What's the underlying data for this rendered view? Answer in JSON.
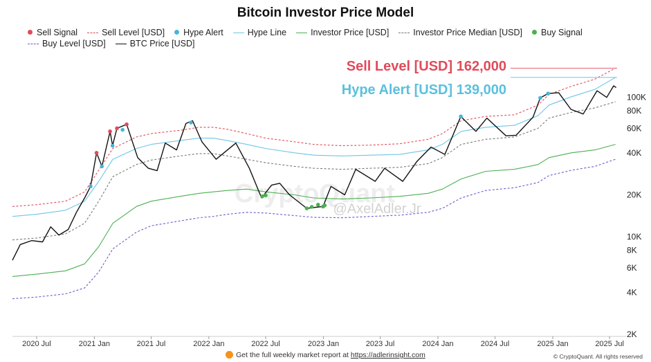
{
  "page": {
    "title": "Bitcoin Investor Price Model",
    "footer_text": "Get the full weekly market report at",
    "footer_link": "https://adlerinsight.com",
    "copyright": "© CryptoQuant. All rights reserved",
    "watermark": "CryptoQuant",
    "author_tag": "@AxelAdler.Jr"
  },
  "legend": [
    {
      "label": "Sell Signal",
      "kind": "dot",
      "color": "#e04b5a"
    },
    {
      "label": "Sell Level [USD]",
      "kind": "dash",
      "color": "#e04b5a"
    },
    {
      "label": "Hype Alert",
      "kind": "dot",
      "color": "#47b5d8"
    },
    {
      "label": "Hype Line",
      "kind": "line",
      "color": "#6ec6e4"
    },
    {
      "label": "Investor Price [USD]",
      "kind": "line",
      "color": "#4caf50"
    },
    {
      "label": "Investor Price Median [USD]",
      "kind": "dash",
      "color": "#777777"
    },
    {
      "label": "Buy Signal",
      "kind": "dot",
      "color": "#4caf50"
    },
    {
      "label": "Buy Level [USD]",
      "kind": "dash",
      "color": "#6a5acd"
    },
    {
      "label": "BTC Price [USD]",
      "kind": "line",
      "color": "#111111"
    }
  ],
  "annotations": [
    {
      "text": "Sell Level [USD] 162,000",
      "value": 162000,
      "color": "#e04b5a"
    },
    {
      "text": "Hype Alert [USD] 139,000",
      "value": 139000,
      "color": "#5bc0de"
    }
  ],
  "chart_data": {
    "type": "line",
    "title": "Bitcoin Investor Price Model",
    "yscale": "log",
    "ylim": [
      2000,
      200000
    ],
    "xlim": [
      "2020-04-15",
      "2025-07-25"
    ],
    "y_ticks": [
      {
        "value": 2000,
        "label": "2K"
      },
      {
        "value": 4000,
        "label": "4K"
      },
      {
        "value": 6000,
        "label": "6K"
      },
      {
        "value": 8000,
        "label": "8K"
      },
      {
        "value": 10000,
        "label": "10K"
      },
      {
        "value": 20000,
        "label": "20K"
      },
      {
        "value": 40000,
        "label": "40K"
      },
      {
        "value": 60000,
        "label": "60K"
      },
      {
        "value": 80000,
        "label": "80K"
      },
      {
        "value": 100000,
        "label": "100K"
      }
    ],
    "x_ticks": [
      {
        "date": "2020-07-01",
        "label": "2020 Jul"
      },
      {
        "date": "2021-01-01",
        "label": "2021 Jan"
      },
      {
        "date": "2021-07-01",
        "label": "2021 Jul"
      },
      {
        "date": "2022-01-01",
        "label": "2022 Jan"
      },
      {
        "date": "2022-07-01",
        "label": "2022 Jul"
      },
      {
        "date": "2023-01-01",
        "label": "2023 Jan"
      },
      {
        "date": "2023-07-01",
        "label": "2023 Jul"
      },
      {
        "date": "2024-01-01",
        "label": "2024 Jan"
      },
      {
        "date": "2024-07-01",
        "label": "2024 Jul"
      },
      {
        "date": "2025-01-01",
        "label": "2025 Jan"
      },
      {
        "date": "2025-07-01",
        "label": "2025 Jul"
      }
    ],
    "grid": false,
    "legend_position": "top",
    "series": [
      {
        "name": "Sell Level [USD]",
        "color": "#e04b5a",
        "style": "dash",
        "points": [
          [
            "2020-04-15",
            16500
          ],
          [
            "2020-07-01",
            17000
          ],
          [
            "2020-10-01",
            18000
          ],
          [
            "2020-12-01",
            21000
          ],
          [
            "2021-01-15",
            30000
          ],
          [
            "2021-03-01",
            43000
          ],
          [
            "2021-05-15",
            52000
          ],
          [
            "2021-07-01",
            55000
          ],
          [
            "2021-10-01",
            58000
          ],
          [
            "2021-12-01",
            61000
          ],
          [
            "2022-01-15",
            61000
          ],
          [
            "2022-03-01",
            59000
          ],
          [
            "2022-05-01",
            55000
          ],
          [
            "2022-07-01",
            51000
          ],
          [
            "2022-10-01",
            48000
          ],
          [
            "2022-12-01",
            46000
          ],
          [
            "2023-03-01",
            45000
          ],
          [
            "2023-06-01",
            45500
          ],
          [
            "2023-09-01",
            46500
          ],
          [
            "2023-12-01",
            50000
          ],
          [
            "2024-01-15",
            55000
          ],
          [
            "2024-03-15",
            68000
          ],
          [
            "2024-06-01",
            73000
          ],
          [
            "2024-09-01",
            75000
          ],
          [
            "2024-11-15",
            88000
          ],
          [
            "2024-12-20",
            105000
          ],
          [
            "2025-03-01",
            120000
          ],
          [
            "2025-05-15",
            135000
          ],
          [
            "2025-07-20",
            162000
          ]
        ]
      },
      {
        "name": "Hype Line",
        "color": "#6ec6e4",
        "style": "line",
        "points": [
          [
            "2020-04-15",
            14000
          ],
          [
            "2020-07-01",
            14500
          ],
          [
            "2020-10-01",
            15500
          ],
          [
            "2020-12-01",
            18000
          ],
          [
            "2021-01-15",
            25000
          ],
          [
            "2021-03-01",
            36000
          ],
          [
            "2021-05-15",
            43000
          ],
          [
            "2021-07-01",
            46000
          ],
          [
            "2021-10-01",
            49000
          ],
          [
            "2021-12-01",
            51000
          ],
          [
            "2022-01-15",
            51000
          ],
          [
            "2022-03-01",
            49000
          ],
          [
            "2022-05-01",
            46000
          ],
          [
            "2022-07-01",
            43000
          ],
          [
            "2022-10-01",
            40000
          ],
          [
            "2022-12-01",
            38500
          ],
          [
            "2023-03-01",
            38000
          ],
          [
            "2023-06-01",
            38500
          ],
          [
            "2023-09-01",
            39000
          ],
          [
            "2023-12-01",
            42000
          ],
          [
            "2024-01-15",
            46000
          ],
          [
            "2024-03-15",
            57000
          ],
          [
            "2024-06-01",
            61000
          ],
          [
            "2024-09-01",
            63000
          ],
          [
            "2024-11-15",
            74000
          ],
          [
            "2024-12-20",
            88000
          ],
          [
            "2025-03-01",
            101000
          ],
          [
            "2025-05-15",
            114000
          ],
          [
            "2025-07-20",
            139000
          ]
        ]
      },
      {
        "name": "Investor Price Median [USD]",
        "color": "#777777",
        "style": "dash",
        "points": [
          [
            "2020-04-15",
            9500
          ],
          [
            "2020-07-01",
            9800
          ],
          [
            "2020-10-01",
            10500
          ],
          [
            "2020-12-01",
            12500
          ],
          [
            "2021-01-15",
            18000
          ],
          [
            "2021-03-01",
            27000
          ],
          [
            "2021-05-15",
            33000
          ],
          [
            "2021-07-01",
            35500
          ],
          [
            "2021-10-01",
            38000
          ],
          [
            "2021-12-01",
            39500
          ],
          [
            "2022-01-15",
            39500
          ],
          [
            "2022-03-01",
            38000
          ],
          [
            "2022-05-01",
            36000
          ],
          [
            "2022-07-01",
            34000
          ],
          [
            "2022-10-01",
            32000
          ],
          [
            "2022-12-01",
            31000
          ],
          [
            "2023-03-01",
            30500
          ],
          [
            "2023-06-01",
            31000
          ],
          [
            "2023-09-01",
            31500
          ],
          [
            "2023-12-01",
            33500
          ],
          [
            "2024-01-15",
            37000
          ],
          [
            "2024-03-15",
            46000
          ],
          [
            "2024-06-01",
            50000
          ],
          [
            "2024-09-01",
            52000
          ],
          [
            "2024-11-15",
            60000
          ],
          [
            "2024-12-20",
            71000
          ],
          [
            "2025-03-01",
            78000
          ],
          [
            "2025-05-15",
            84000
          ],
          [
            "2025-07-20",
            93000
          ]
        ]
      },
      {
        "name": "Investor Price [USD]",
        "color": "#4caf50",
        "style": "line",
        "points": [
          [
            "2020-04-15",
            5200
          ],
          [
            "2020-07-01",
            5400
          ],
          [
            "2020-10-01",
            5700
          ],
          [
            "2020-12-01",
            6400
          ],
          [
            "2021-01-15",
            8500
          ],
          [
            "2021-03-01",
            12500
          ],
          [
            "2021-05-15",
            16500
          ],
          [
            "2021-07-01",
            18000
          ],
          [
            "2021-10-01",
            19500
          ],
          [
            "2021-12-01",
            20500
          ],
          [
            "2022-01-15",
            21000
          ],
          [
            "2022-03-01",
            21500
          ],
          [
            "2022-05-01",
            22000
          ],
          [
            "2022-07-01",
            21000
          ],
          [
            "2022-10-01",
            20000
          ],
          [
            "2022-12-01",
            19000
          ],
          [
            "2023-03-01",
            18700
          ],
          [
            "2023-06-01",
            19000
          ],
          [
            "2023-09-01",
            19500
          ],
          [
            "2023-12-01",
            20500
          ],
          [
            "2024-01-15",
            22000
          ],
          [
            "2024-03-15",
            26000
          ],
          [
            "2024-06-01",
            29500
          ],
          [
            "2024-09-01",
            30500
          ],
          [
            "2024-11-15",
            33000
          ],
          [
            "2024-12-20",
            37000
          ],
          [
            "2025-03-01",
            40000
          ],
          [
            "2025-05-15",
            42000
          ],
          [
            "2025-07-20",
            46000
          ]
        ]
      },
      {
        "name": "Buy Level [USD]",
        "color": "#6a5acd",
        "style": "dash",
        "points": [
          [
            "2020-04-15",
            3600
          ],
          [
            "2020-07-01",
            3700
          ],
          [
            "2020-10-01",
            3900
          ],
          [
            "2020-12-01",
            4300
          ],
          [
            "2021-01-15",
            5600
          ],
          [
            "2021-03-01",
            8200
          ],
          [
            "2021-05-15",
            10800
          ],
          [
            "2021-07-01",
            12000
          ],
          [
            "2021-10-01",
            13000
          ],
          [
            "2021-12-01",
            13700
          ],
          [
            "2022-01-15",
            14000
          ],
          [
            "2022-03-01",
            14500
          ],
          [
            "2022-05-01",
            15000
          ],
          [
            "2022-07-01",
            14800
          ],
          [
            "2022-10-01",
            14200
          ],
          [
            "2022-12-01",
            13800
          ],
          [
            "2023-03-01",
            13700
          ],
          [
            "2023-06-01",
            14000
          ],
          [
            "2023-09-01",
            14300
          ],
          [
            "2023-12-01",
            15000
          ],
          [
            "2024-01-15",
            16000
          ],
          [
            "2024-03-15",
            19000
          ],
          [
            "2024-06-01",
            21500
          ],
          [
            "2024-09-01",
            22500
          ],
          [
            "2024-11-15",
            24500
          ],
          [
            "2024-12-20",
            27500
          ],
          [
            "2025-03-01",
            30000
          ],
          [
            "2025-05-15",
            32000
          ],
          [
            "2025-07-20",
            36000
          ]
        ]
      },
      {
        "name": "BTC Price [USD]",
        "color": "#111111",
        "style": "line",
        "points": [
          [
            "2020-04-15",
            6800
          ],
          [
            "2020-05-10",
            8800
          ],
          [
            "2020-06-15",
            9400
          ],
          [
            "2020-07-20",
            9200
          ],
          [
            "2020-08-15",
            11800
          ],
          [
            "2020-09-10",
            10300
          ],
          [
            "2020-10-10",
            11300
          ],
          [
            "2020-11-05",
            15000
          ],
          [
            "2020-12-01",
            19000
          ],
          [
            "2020-12-20",
            23000
          ],
          [
            "2021-01-08",
            40000
          ],
          [
            "2021-01-25",
            32000
          ],
          [
            "2021-02-20",
            57000
          ],
          [
            "2021-02-28",
            45000
          ],
          [
            "2021-03-14",
            60000
          ],
          [
            "2021-04-14",
            64000
          ],
          [
            "2021-05-19",
            37000
          ],
          [
            "2021-06-22",
            31000
          ],
          [
            "2021-07-20",
            29800
          ],
          [
            "2021-08-15",
            47000
          ],
          [
            "2021-09-20",
            42000
          ],
          [
            "2021-10-20",
            65000
          ],
          [
            "2021-11-10",
            68000
          ],
          [
            "2021-12-10",
            48000
          ],
          [
            "2022-01-24",
            36000
          ],
          [
            "2022-03-28",
            47000
          ],
          [
            "2022-05-10",
            31000
          ],
          [
            "2022-06-18",
            19000
          ],
          [
            "2022-07-20",
            23500
          ],
          [
            "2022-08-15",
            24200
          ],
          [
            "2022-09-15",
            20000
          ],
          [
            "2022-11-09",
            16000
          ],
          [
            "2022-12-31",
            16500
          ],
          [
            "2023-01-25",
            23000
          ],
          [
            "2023-03-10",
            20000
          ],
          [
            "2023-04-14",
            30500
          ],
          [
            "2023-06-15",
            25000
          ],
          [
            "2023-07-15",
            31000
          ],
          [
            "2023-09-11",
            25000
          ],
          [
            "2023-10-25",
            34500
          ],
          [
            "2023-12-10",
            44000
          ],
          [
            "2024-01-23",
            39000
          ],
          [
            "2024-03-14",
            73000
          ],
          [
            "2024-05-01",
            57000
          ],
          [
            "2024-06-05",
            71000
          ],
          [
            "2024-08-05",
            53000
          ],
          [
            "2024-09-06",
            53500
          ],
          [
            "2024-10-30",
            72000
          ],
          [
            "2024-11-22",
            99000
          ],
          [
            "2024-12-17",
            106500
          ],
          [
            "2025-01-20",
            108000
          ],
          [
            "2025-02-28",
            82000
          ],
          [
            "2025-04-08",
            76000
          ],
          [
            "2025-05-22",
            111500
          ],
          [
            "2025-06-22",
            100000
          ],
          [
            "2025-07-14",
            121000
          ],
          [
            "2025-07-22",
            117500
          ]
        ]
      }
    ],
    "signals": [
      {
        "name": "Sell Signal",
        "color": "#e04b5a",
        "points": [
          [
            "2021-01-08",
            40000
          ],
          [
            "2021-02-20",
            57000
          ],
          [
            "2021-03-14",
            60000
          ],
          [
            "2021-04-14",
            64000
          ]
        ]
      },
      {
        "name": "Hype Alert",
        "color": "#47b5d8",
        "points": [
          [
            "2020-12-20",
            23000
          ],
          [
            "2021-01-25",
            32000
          ],
          [
            "2021-02-28",
            45000
          ],
          [
            "2021-04-01",
            58500
          ],
          [
            "2021-11-05",
            66000
          ],
          [
            "2024-03-14",
            73000
          ],
          [
            "2024-11-22",
            99000
          ],
          [
            "2024-12-17",
            106500
          ]
        ]
      },
      {
        "name": "Buy Signal",
        "color": "#4caf50",
        "points": [
          [
            "2022-06-20",
            19500
          ],
          [
            "2022-07-01",
            19800
          ],
          [
            "2022-11-09",
            16000
          ],
          [
            "2022-11-25",
            16400
          ],
          [
            "2022-12-15",
            17000
          ],
          [
            "2022-12-31",
            16500
          ],
          [
            "2023-01-05",
            16800
          ]
        ]
      }
    ]
  }
}
